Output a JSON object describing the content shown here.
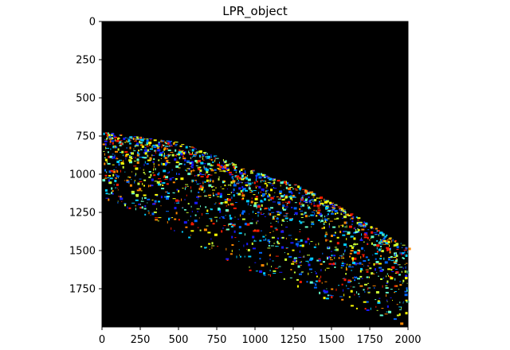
{
  "chart_data": {
    "type": "heatmap",
    "title": "LPR_object",
    "xlabel": "",
    "ylabel": "",
    "xlim": [
      0,
      2000
    ],
    "ylim": [
      2000,
      0
    ],
    "x_ticks": [
      "0",
      "250",
      "500",
      "750",
      "1000",
      "1250",
      "1500",
      "1750",
      "2000"
    ],
    "y_ticks": [
      "0",
      "250",
      "500",
      "750",
      "1000",
      "1250",
      "1500",
      "1750"
    ],
    "background_color": "#000000",
    "colormap": [
      "#1a1aff",
      "#0066ff",
      "#00ccff",
      "#66ffcc",
      "#ccff33",
      "#ffff00",
      "#ff8800",
      "#ff1a00"
    ],
    "region": {
      "description_free": true,
      "top_edge": [
        [
          0,
          720
        ],
        [
          500,
          790
        ],
        [
          1000,
          980
        ],
        [
          1300,
          1080
        ],
        [
          1600,
          1240
        ],
        [
          2000,
          1480
        ]
      ],
      "bottom_edge": [
        [
          0,
          1150
        ],
        [
          400,
          1330
        ],
        [
          800,
          1560
        ],
        [
          1200,
          1720
        ],
        [
          1600,
          1860
        ],
        [
          2000,
          2000
        ]
      ]
    },
    "grid": false,
    "legend": "none"
  }
}
